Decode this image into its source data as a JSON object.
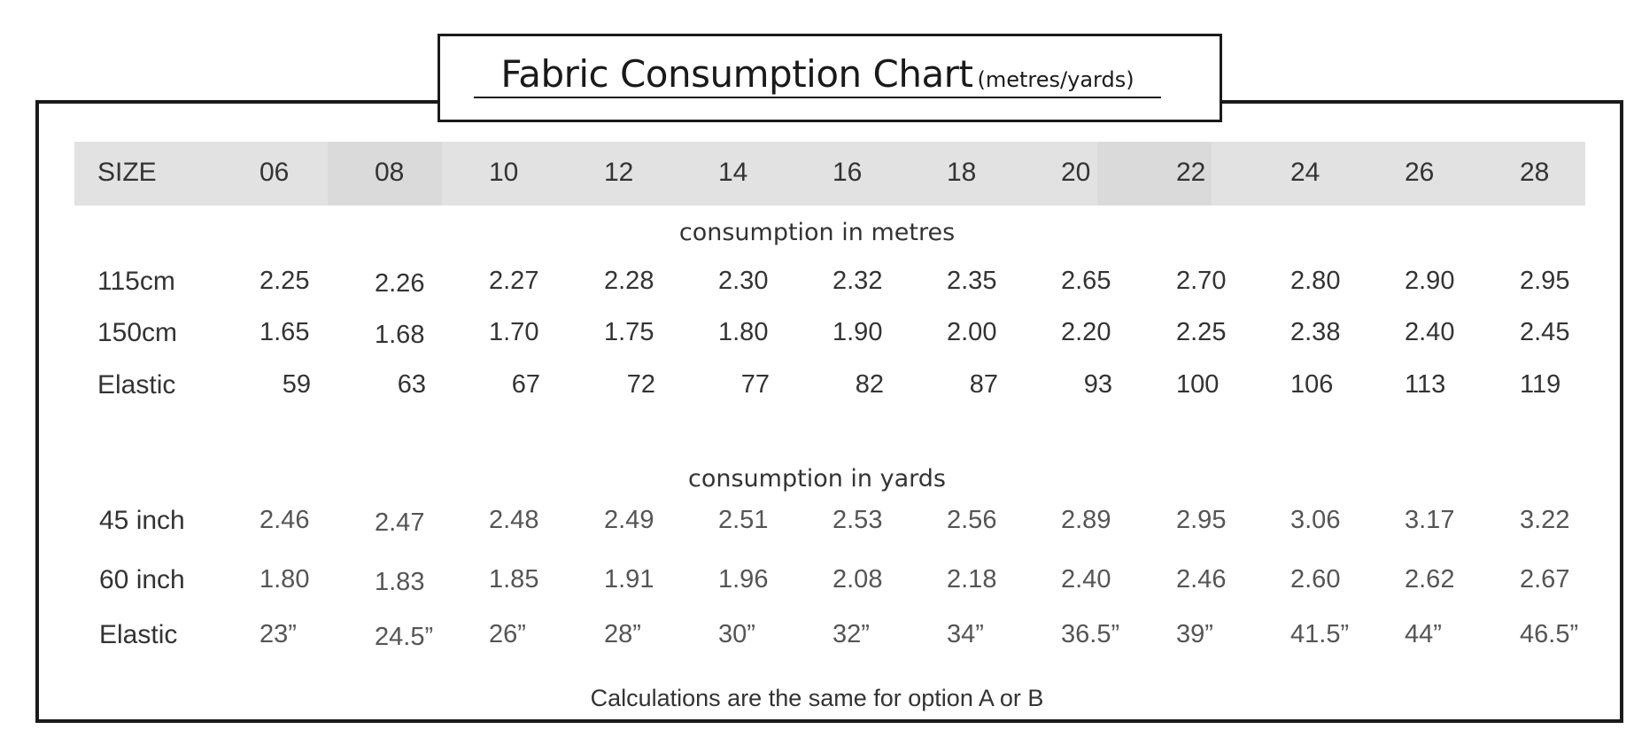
{
  "title": {
    "main": "Fabric Consumption Chart",
    "unit": "(metres/yards)"
  },
  "header": {
    "size_label": "SIZE",
    "sizes": [
      "06",
      "08",
      "10",
      "12",
      "14",
      "16",
      "18",
      "20",
      "22",
      "24",
      "26",
      "28"
    ]
  },
  "metres": {
    "section_title": "consumption in metres",
    "rows": [
      {
        "label": "115cm",
        "values": [
          "2.25",
          "2.26",
          "2.27",
          "2.28",
          "2.30",
          "2.32",
          "2.35",
          "2.65",
          "2.70",
          "2.80",
          "2.90",
          "2.95"
        ]
      },
      {
        "label": "150cm",
        "values": [
          "1.65",
          "1.68",
          "1.70",
          "1.75",
          "1.80",
          "1.90",
          "2.00",
          "2.20",
          "2.25",
          "2.38",
          "2.40",
          "2.45"
        ]
      },
      {
        "label": "Elastic",
        "values": [
          "59",
          "63",
          "67",
          "72",
          "77",
          "82",
          "87",
          "93",
          "100",
          "106",
          "113",
          "119"
        ]
      }
    ]
  },
  "yards": {
    "section_title": "consumption in yards",
    "rows": [
      {
        "label": "45 inch",
        "values": [
          "2.46",
          "2.47",
          "2.48",
          "2.49",
          "2.51",
          "2.53",
          "2.56",
          "2.89",
          "2.95",
          "3.06",
          "3.17",
          "3.22"
        ]
      },
      {
        "label": "60 inch",
        "values": [
          "1.80",
          "1.83",
          "1.85",
          "1.91",
          "1.96",
          "2.08",
          "2.18",
          "2.40",
          "2.46",
          "2.60",
          "2.62",
          "2.67"
        ]
      },
      {
        "label": "Elastic",
        "values": [
          "23”",
          "24.5”",
          "26”",
          "28”",
          "30”",
          "32”",
          "34”",
          "36.5”",
          "39”",
          "41.5”",
          "44”",
          "46.5”"
        ]
      }
    ]
  },
  "footnote": "Calculations are the same for option A or B",
  "colors": {
    "header_band": "#e2e2e2",
    "border": "#1a1a1a",
    "text": "#333333"
  }
}
